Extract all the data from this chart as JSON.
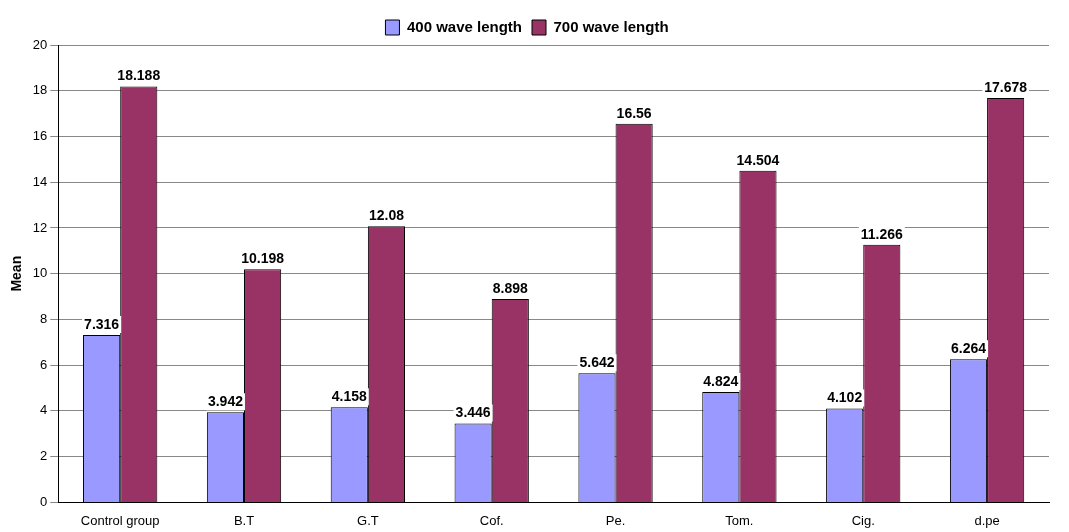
{
  "chart_data": {
    "type": "bar",
    "ylabel": "Mean",
    "categories": [
      "Control group",
      "B.T",
      "G.T",
      "Cof.",
      "Pe.",
      "Tom.",
      "Cig.",
      "d.pe"
    ],
    "series": [
      {
        "name": "400 wave length",
        "color": "#9999ff",
        "values": [
          7.316,
          3.942,
          4.158,
          3.446,
          5.642,
          4.824,
          4.102,
          6.264
        ]
      },
      {
        "name": "700 wave length",
        "color": "#993366",
        "values": [
          18.188,
          10.198,
          12.08,
          8.898,
          16.56,
          14.504,
          11.266,
          17.678
        ]
      }
    ],
    "ylim": [
      0,
      20
    ],
    "yticks": [
      0,
      2,
      4,
      6,
      8,
      10,
      12,
      14,
      16,
      18,
      20
    ],
    "grid": "y",
    "legend": "top",
    "data_labels": true
  }
}
